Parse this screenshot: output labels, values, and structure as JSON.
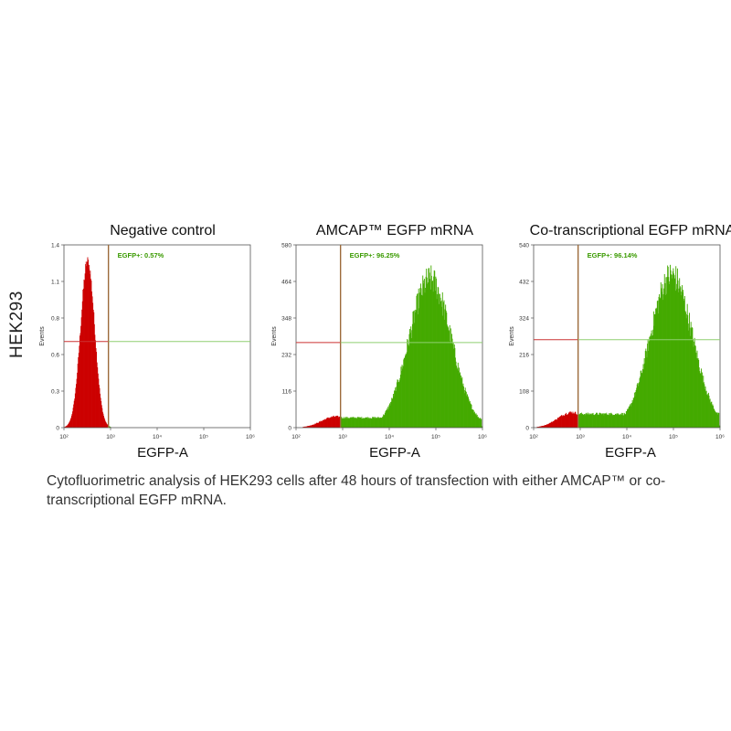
{
  "row_label": "HEK293",
  "caption": "Cytofluorimetric analysis of HEK293 cells after 48 hours of transfection with either AMCAP™ or co-transcriptional EGFP mRNA.",
  "colors": {
    "negative": "#cc0000",
    "positive": "#44aa00",
    "gate_label": "#3a9a00",
    "gate_line_vertical": "#9c6a3a",
    "gate_line_red": "#cc3333",
    "gate_line_green": "#8fcf70"
  },
  "chart_data": [
    {
      "type": "histogram",
      "title": "Negative control",
      "xlabel": "EGFP-A",
      "ylabel": "Events",
      "x_scale": "log",
      "xlim": [
        100,
        1000000
      ],
      "x_ticks": [
        "10²",
        "10³",
        "10⁴",
        "10⁵",
        "10⁶"
      ],
      "ylim": [
        0,
        1.4
      ],
      "y_ticks": [
        "0",
        "0.3",
        "0.6",
        "0.8",
        "1.1",
        "1.4"
      ],
      "gate_threshold": 900,
      "gate_label": "EGFP+: 0.57%",
      "gate_line_y": 0.66,
      "peak": {
        "center": 320,
        "height": 1.27,
        "width_log": 0.15
      },
      "shoulder": null,
      "noise": 0.04
    },
    {
      "type": "histogram",
      "title": "AMCAP™ EGFP mRNA",
      "xlabel": "EGFP-A",
      "ylabel": "Events",
      "x_scale": "log",
      "xlim": [
        100,
        1000000
      ],
      "x_ticks": [
        "10²",
        "10³",
        "10⁴",
        "10⁵",
        "10⁶"
      ],
      "ylim": [
        0,
        580
      ],
      "y_ticks": [
        "0",
        "116",
        "232",
        "348",
        "464",
        "580"
      ],
      "gate_threshold": 900,
      "gate_label": "EGFP+: 96.25%",
      "gate_line_y": 270,
      "peak": {
        "center": 75000,
        "height": 470,
        "width_log": 0.45
      },
      "shoulder": {
        "center": 700,
        "height": 35,
        "width_log": 0.3
      },
      "noise": 0.1
    },
    {
      "type": "histogram",
      "title": "Co-transcriptional EGFP mRNA",
      "xlabel": "EGFP-A",
      "ylabel": "Events",
      "x_scale": "log",
      "xlim": [
        100,
        1000000
      ],
      "x_ticks": [
        "10²",
        "10³",
        "10⁴",
        "10⁵",
        "10⁶"
      ],
      "ylim": [
        0,
        540
      ],
      "y_ticks": [
        "0",
        "108",
        "216",
        "324",
        "432",
        "540"
      ],
      "gate_threshold": 900,
      "gate_label": "EGFP+: 96.14%",
      "gate_line_y": 260,
      "peak": {
        "center": 90000,
        "height": 450,
        "width_log": 0.45
      },
      "shoulder": {
        "center": 650,
        "height": 45,
        "width_log": 0.3
      },
      "noise": 0.1
    }
  ]
}
